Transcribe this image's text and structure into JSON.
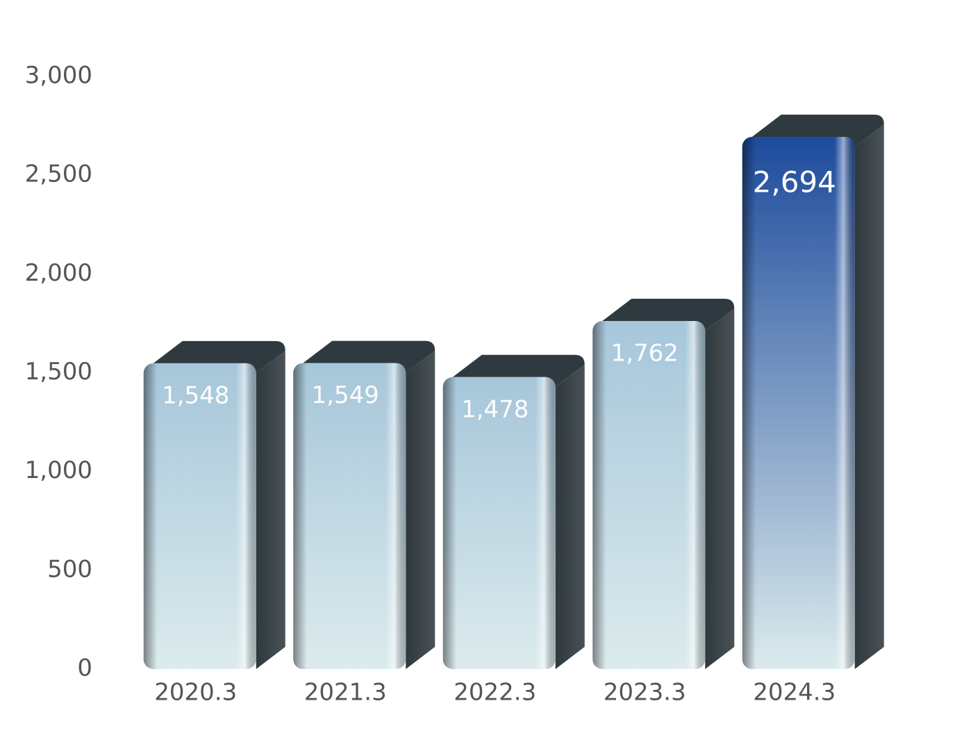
{
  "chart_data": {
    "type": "bar3d",
    "categories": [
      "2020.3",
      "2021.3",
      "2022.3",
      "2023.3",
      "2024.3"
    ],
    "values": [
      1548,
      1549,
      1478,
      1762,
      2694
    ],
    "value_labels": [
      "1,548",
      "1,549",
      "1,478",
      "1,762",
      "2,694"
    ],
    "colors": [
      "#a6c6da",
      "#a6c6da",
      "#a6c6da",
      "#a6c6da",
      "#1d4b9c"
    ],
    "ylim": [
      0,
      3000
    ],
    "yticks": [
      0,
      500,
      {
        "value": 1000,
        "label": "1,000"
      },
      {
        "value": 1500,
        "label": "1,500"
      },
      {
        "value": 2000,
        "label": "2,000"
      },
      {
        "value": 2500,
        "label": "2,500"
      },
      {
        "value": 3000,
        "label": "3,000"
      }
    ],
    "grid": false
  }
}
